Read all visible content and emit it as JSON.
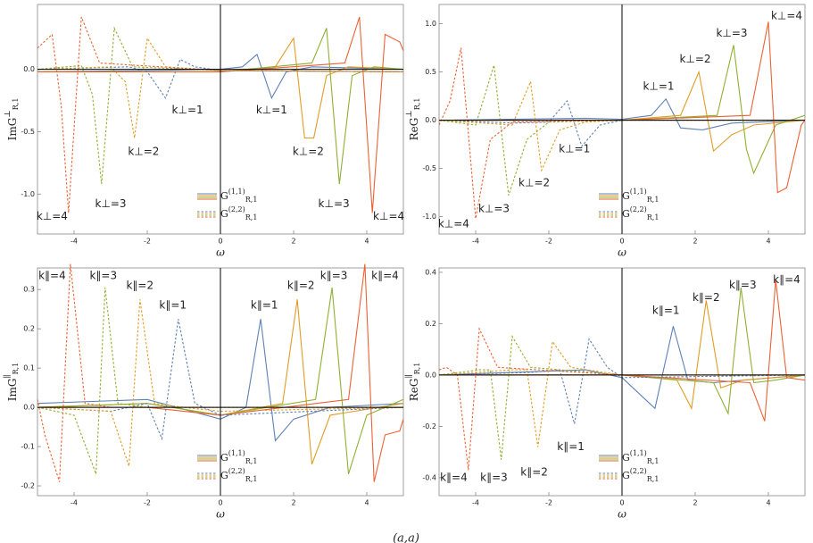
{
  "chart_data": [
    {
      "type": "line",
      "ylabel": {
        "main": "ImG",
        "sup": "⊥",
        "sub": "R,1"
      },
      "xlabel": "ω",
      "xlim": [
        -5,
        5
      ],
      "ylim": [
        -1.32,
        0.52
      ],
      "xticks": [
        -4,
        -2,
        0,
        2,
        4
      ],
      "yticks": [
        {
          "value": 0,
          "label": "0.0"
        },
        -0.5,
        {
          "value": -1,
          "label": "-1.0"
        }
      ],
      "legend": [
        {
          "main": "G",
          "sup": "(1,1)",
          "sub": "R,1"
        },
        {
          "main": "G",
          "sup": "(2,2)",
          "sub": "R,1"
        }
      ],
      "series": [
        {
          "color": "#5E81B5",
          "dash": false,
          "x": [
            -5,
            -2,
            0,
            0.6,
            1.0,
            1.4,
            1.8,
            2.5,
            5
          ],
          "values": [
            -0.02,
            -0.01,
            0,
            0.02,
            0.12,
            -0.23,
            -0.02,
            0.02,
            0
          ]
        },
        {
          "color": "#E19C24",
          "dash": false,
          "x": [
            -5,
            0,
            1.5,
            2.0,
            2.3,
            2.55,
            2.9,
            3.5,
            5
          ],
          "values": [
            -0.02,
            -0.02,
            0.02,
            0.25,
            -0.55,
            -0.55,
            -0.05,
            0.02,
            0
          ]
        },
        {
          "color": "#8FB032",
          "dash": false,
          "x": [
            -5,
            0,
            2.5,
            2.9,
            3.25,
            3.6,
            4.2,
            5
          ],
          "values": [
            -0.02,
            -0.02,
            0.05,
            0.33,
            -0.92,
            -0.05,
            0.02,
            0
          ]
        },
        {
          "color": "#EB6235",
          "dash": false,
          "x": [
            -5,
            0,
            3.4,
            3.8,
            4.15,
            4.5,
            4.9,
            5
          ],
          "values": [
            -0.02,
            -0.02,
            0.05,
            0.42,
            -1.15,
            0.28,
            0.22,
            0.15
          ]
        },
        {
          "color": "#5E81B5",
          "dash": true,
          "x": [
            -5,
            -2.5,
            -2.0,
            -1.5,
            -1.1,
            -0.7,
            0,
            5
          ],
          "values": [
            0,
            0.02,
            -0.02,
            -0.23,
            0.08,
            0.02,
            -0.01,
            -0.02
          ]
        },
        {
          "color": "#E19C24",
          "dash": true,
          "x": [
            -5,
            -3,
            -2.6,
            -2.35,
            -2.0,
            -1.5,
            0,
            5
          ],
          "values": [
            0,
            0.02,
            -0.1,
            -0.55,
            0.25,
            0.02,
            -0.01,
            -0.02
          ]
        },
        {
          "color": "#8FB032",
          "dash": true,
          "x": [
            -5,
            -3.8,
            -3.5,
            -3.25,
            -2.9,
            -2.4,
            0,
            5
          ],
          "values": [
            0,
            0.03,
            -0.2,
            -0.92,
            0.33,
            0.02,
            -0.01,
            -0.02
          ]
        },
        {
          "color": "#EB6235",
          "dash": true,
          "x": [
            -5,
            -4.6,
            -4.35,
            -4.15,
            -3.8,
            -3.3,
            0,
            5
          ],
          "values": [
            0.17,
            0.28,
            -0.3,
            -1.15,
            0.42,
            0.05,
            -0.01,
            -0.02
          ]
        }
      ],
      "annotations": [
        {
          "text": "k⊥=1",
          "x": -0.9,
          "y": -0.33
        },
        {
          "text": "k⊥=2",
          "x": -2.1,
          "y": -0.66
        },
        {
          "text": "k⊥=3",
          "x": -3.0,
          "y": -1.08
        },
        {
          "text": "k⊥=4",
          "x": -4.6,
          "y": -1.18
        },
        {
          "text": "k⊥=1",
          "x": 1.4,
          "y": -0.33
        },
        {
          "text": "k⊥=2",
          "x": 2.4,
          "y": -0.66
        },
        {
          "text": "k⊥=3",
          "x": 3.1,
          "y": -1.08
        },
        {
          "text": "k⊥=4",
          "x": 4.6,
          "y": -1.18
        }
      ]
    },
    {
      "type": "line",
      "ylabel": {
        "main": "ReG",
        "sup": "⊥",
        "sub": "R,1"
      },
      "xlabel": "ω",
      "xlim": [
        -5,
        5
      ],
      "ylim": [
        -1.18,
        1.2
      ],
      "xticks": [
        -4,
        -2,
        0,
        2,
        4
      ],
      "yticks": [
        {
          "value": 1,
          "label": "1.0"
        },
        0.5,
        {
          "value": 0,
          "label": "0.0"
        },
        -0.5,
        {
          "value": -1,
          "label": "-1.0"
        }
      ],
      "legend": [
        {
          "main": "G",
          "sup": "(1,1)",
          "sub": "R,1"
        },
        {
          "main": "G",
          "sup": "(2,2)",
          "sub": "R,1"
        }
      ],
      "series": [
        {
          "color": "#5E81B5",
          "dash": false,
          "x": [
            -5,
            -1,
            0,
            0.8,
            1.2,
            1.6,
            2.2,
            3,
            5
          ],
          "values": [
            0,
            0.02,
            0.01,
            0.05,
            0.22,
            -0.08,
            -0.1,
            -0.03,
            0
          ]
        },
        {
          "color": "#E19C24",
          "dash": false,
          "x": [
            -5,
            0,
            1.6,
            2.1,
            2.5,
            3.0,
            3.6,
            5
          ],
          "values": [
            0,
            0,
            0.05,
            0.5,
            -0.32,
            -0.15,
            -0.05,
            0
          ]
        },
        {
          "color": "#8FB032",
          "dash": false,
          "x": [
            -5,
            0,
            2.6,
            3.05,
            3.4,
            3.6,
            4.2,
            5
          ],
          "values": [
            0,
            0,
            0.05,
            0.78,
            -0.3,
            -0.55,
            -0.05,
            0.05
          ]
        },
        {
          "color": "#EB6235",
          "dash": false,
          "x": [
            -5,
            0,
            3.5,
            4.0,
            4.25,
            4.5,
            4.9,
            5
          ],
          "values": [
            0,
            0,
            0.05,
            1.02,
            -0.75,
            -0.7,
            -0.05,
            0
          ]
        },
        {
          "color": "#5E81B5",
          "dash": true,
          "x": [
            -5,
            -3,
            -2,
            -1.5,
            -1.1,
            -0.6,
            0,
            5
          ],
          "values": [
            0,
            -0.03,
            -0.02,
            0.2,
            -0.27,
            -0.05,
            0,
            0
          ]
        },
        {
          "color": "#E19C24",
          "dash": true,
          "x": [
            -5,
            -3,
            -2.5,
            -2.2,
            -1.7,
            -1,
            0,
            5
          ],
          "values": [
            0,
            -0.05,
            0.4,
            -0.52,
            -0.1,
            -0.02,
            0,
            0
          ]
        },
        {
          "color": "#8FB032",
          "dash": true,
          "x": [
            -5,
            -4,
            -3.5,
            -3.1,
            -2.6,
            -2,
            0,
            5
          ],
          "values": [
            0,
            -0.05,
            0.57,
            -0.78,
            -0.2,
            -0.02,
            0,
            0
          ]
        },
        {
          "color": "#EB6235",
          "dash": true,
          "x": [
            -5,
            -4.7,
            -4.4,
            -4.0,
            -3.6,
            -3,
            0,
            5
          ],
          "values": [
            -0.05,
            0.2,
            0.75,
            -1.02,
            -0.2,
            -0.02,
            0,
            0
          ]
        }
      ],
      "annotations": [
        {
          "text": "k⊥=1",
          "x": 1.0,
          "y": 0.35
        },
        {
          "text": "k⊥=2",
          "x": 2.0,
          "y": 0.63
        },
        {
          "text": "k⊥=3",
          "x": 3.0,
          "y": 0.9
        },
        {
          "text": "k⊥=4",
          "x": 4.5,
          "y": 1.08
        },
        {
          "text": "k⊥=1",
          "x": -1.3,
          "y": -0.3
        },
        {
          "text": "k⊥=2",
          "x": -2.4,
          "y": -0.65
        },
        {
          "text": "k⊥=3",
          "x": -3.5,
          "y": -0.92
        },
        {
          "text": "k⊥=4",
          "x": -4.6,
          "y": -1.08
        }
      ]
    },
    {
      "type": "line",
      "ylabel": {
        "main": "ImG",
        "sup": "∥",
        "sub": "R,1"
      },
      "xlabel": "ω",
      "xlim": [
        -5,
        5
      ],
      "ylim": [
        -0.225,
        0.355
      ],
      "xticks": [
        -4,
        -2,
        0,
        2,
        4
      ],
      "yticks": [
        0.3,
        0.2,
        0.1,
        {
          "value": 0,
          "label": "0.0"
        },
        -0.1,
        -0.2
      ],
      "legend": [
        {
          "main": "G",
          "sup": "(1,1)",
          "sub": "R,1"
        },
        {
          "main": "G",
          "sup": "(2,2)",
          "sub": "R,1"
        }
      ],
      "series": [
        {
          "color": "#5E81B5",
          "dash": false,
          "x": [
            -5,
            -2,
            0,
            0.7,
            1.1,
            1.5,
            2,
            3,
            5
          ],
          "values": [
            0.01,
            0.02,
            -0.03,
            0,
            0.225,
            -0.085,
            -0.03,
            0,
            0.01
          ]
        },
        {
          "color": "#E19C24",
          "dash": false,
          "x": [
            -5,
            -2,
            0,
            1.7,
            2.1,
            2.5,
            3,
            5
          ],
          "values": [
            0,
            0.01,
            -0.02,
            0.01,
            0.275,
            -0.145,
            -0.02,
            0.01
          ]
        },
        {
          "color": "#8FB032",
          "dash": false,
          "x": [
            -5,
            -2,
            0,
            2.6,
            3.05,
            3.5,
            4,
            5
          ],
          "values": [
            0,
            0.01,
            -0.02,
            0.02,
            0.305,
            -0.17,
            -0.02,
            0.02
          ]
        },
        {
          "color": "#EB6235",
          "dash": false,
          "x": [
            -5,
            -2,
            0,
            3.5,
            3.95,
            4.2,
            4.5,
            4.9,
            5
          ],
          "values": [
            0,
            0,
            -0.02,
            0.02,
            0.365,
            -0.19,
            -0.07,
            -0.06,
            -0.03
          ]
        },
        {
          "color": "#5E81B5",
          "dash": true,
          "x": [
            -5,
            -3,
            -2,
            -1.6,
            -1.15,
            -0.7,
            0,
            5
          ],
          "values": [
            0,
            -0.01,
            0.01,
            -0.08,
            0.225,
            0.01,
            -0.02,
            0
          ]
        },
        {
          "color": "#E19C24",
          "dash": true,
          "x": [
            -5,
            -3,
            -2.5,
            -2.2,
            -1.8,
            -1,
            0,
            5
          ],
          "values": [
            0,
            -0.01,
            -0.15,
            0.275,
            0.01,
            0,
            -0.01,
            0
          ]
        },
        {
          "color": "#8FB032",
          "dash": true,
          "x": [
            -5,
            -4,
            -3.4,
            -3.15,
            -2.8,
            -2,
            0,
            5
          ],
          "values": [
            0,
            -0.02,
            -0.17,
            0.305,
            0.01,
            0,
            0,
            0
          ]
        },
        {
          "color": "#EB6235",
          "dash": true,
          "x": [
            -5,
            -4.8,
            -4.4,
            -4.1,
            -3.7,
            -3,
            0,
            5
          ],
          "values": [
            0.02,
            -0.07,
            -0.19,
            0.365,
            0.01,
            0,
            0,
            0
          ]
        }
      ],
      "annotations": [
        {
          "text": "k∥=1",
          "x": 1.2,
          "y": 0.26
        },
        {
          "text": "k∥=2",
          "x": 2.2,
          "y": 0.31
        },
        {
          "text": "k∥=3",
          "x": 3.1,
          "y": 0.335
        },
        {
          "text": "k∥=4",
          "x": 4.5,
          "y": 0.335
        },
        {
          "text": "k∥=1",
          "x": -1.3,
          "y": 0.26
        },
        {
          "text": "k∥=2",
          "x": -2.2,
          "y": 0.31
        },
        {
          "text": "k∥=3",
          "x": -3.2,
          "y": 0.335
        },
        {
          "text": "k∥=4",
          "x": -4.6,
          "y": 0.335
        }
      ]
    },
    {
      "type": "line",
      "ylabel": {
        "main": "ReG",
        "sup": "∥",
        "sub": "R,1"
      },
      "xlabel": "ω",
      "xlim": [
        -5,
        5
      ],
      "ylim": [
        -0.47,
        0.417
      ],
      "xticks": [
        -4,
        -2,
        0,
        2,
        4
      ],
      "yticks": [
        0.4,
        0.2,
        {
          "value": 0,
          "label": "0.0"
        },
        -0.2,
        -0.4
      ],
      "legend": [
        {
          "main": "G",
          "sup": "(1,1)",
          "sub": "R,1"
        },
        {
          "main": "G",
          "sup": "(2,2)",
          "sub": "R,1"
        }
      ],
      "series": [
        {
          "color": "#5E81B5",
          "dash": false,
          "x": [
            -5,
            -1,
            0,
            0.9,
            1.4,
            1.8,
            2.5,
            5
          ],
          "values": [
            0,
            0.02,
            -0.01,
            -0.13,
            0.19,
            -0.02,
            -0.03,
            0
          ]
        },
        {
          "color": "#E19C24",
          "dash": false,
          "x": [
            -5,
            0,
            1.5,
            1.9,
            2.3,
            2.7,
            3.3,
            5
          ],
          "values": [
            0,
            0,
            -0.02,
            -0.13,
            0.29,
            -0.05,
            -0.02,
            0
          ]
        },
        {
          "color": "#8FB032",
          "dash": false,
          "x": [
            -5,
            0,
            2.5,
            2.9,
            3.25,
            3.6,
            4.2,
            5
          ],
          "values": [
            0,
            0,
            -0.03,
            -0.15,
            0.34,
            -0.03,
            -0.02,
            0
          ]
        },
        {
          "color": "#EB6235",
          "dash": false,
          "x": [
            -5,
            0,
            3.5,
            3.9,
            4.2,
            4.5,
            5
          ],
          "values": [
            0,
            0,
            -0.03,
            -0.18,
            0.37,
            -0.01,
            -0.02
          ]
        },
        {
          "color": "#5E81B5",
          "dash": true,
          "x": [
            -5,
            -2.5,
            -1.7,
            -1.3,
            -0.9,
            -0.4,
            0,
            5
          ],
          "values": [
            0,
            0.01,
            0.02,
            -0.19,
            0.14,
            0.03,
            -0.01,
            0
          ]
        },
        {
          "color": "#E19C24",
          "dash": true,
          "x": [
            -5,
            -3,
            -2.6,
            -2.3,
            -1.9,
            -1.4,
            0,
            5
          ],
          "values": [
            0,
            0.02,
            0.02,
            -0.28,
            0.13,
            0.03,
            0,
            0
          ]
        },
        {
          "color": "#8FB032",
          "dash": true,
          "x": [
            -5,
            -3.9,
            -3.6,
            -3.3,
            -3.0,
            -2.5,
            0,
            5
          ],
          "values": [
            0,
            0.02,
            0.02,
            -0.33,
            0.15,
            0.03,
            0,
            0
          ]
        },
        {
          "color": "#EB6235",
          "dash": true,
          "x": [
            -5,
            -4.8,
            -4.5,
            -4.2,
            -3.9,
            -3.4,
            0,
            5
          ],
          "values": [
            0.02,
            0.03,
            0,
            -0.37,
            0.18,
            0.03,
            0,
            0
          ]
        }
      ],
      "annotations": [
        {
          "text": "k∥=1",
          "x": 1.2,
          "y": 0.25
        },
        {
          "text": "k∥=2",
          "x": 2.3,
          "y": 0.3
        },
        {
          "text": "k∥=3",
          "x": 3.3,
          "y": 0.35
        },
        {
          "text": "k∥=4",
          "x": 4.5,
          "y": 0.37
        },
        {
          "text": "k∥=1",
          "x": -1.4,
          "y": -0.28
        },
        {
          "text": "k∥=2",
          "x": -2.4,
          "y": -0.38
        },
        {
          "text": "k∥=3",
          "x": -3.5,
          "y": -0.4
        },
        {
          "text": "k∥=4",
          "x": -4.6,
          "y": -0.4
        }
      ]
    }
  ],
  "caption": "(a,a)"
}
